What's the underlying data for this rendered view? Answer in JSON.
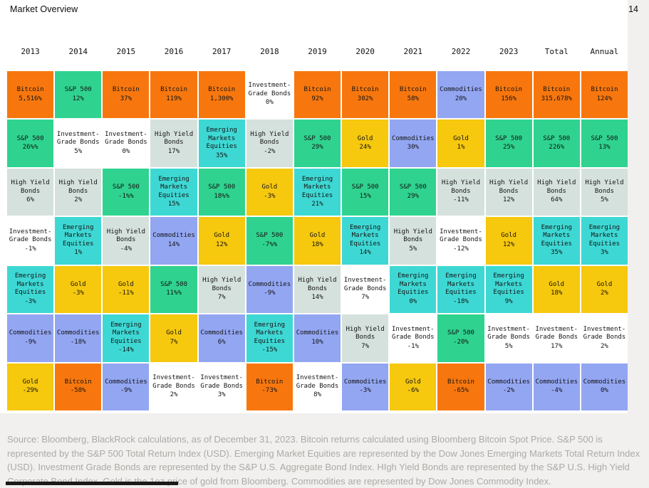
{
  "header": {
    "title": "Market Overview",
    "page_number": "14"
  },
  "asset_colors": {
    "Bitcoin": "#F7770E",
    "S&P 500": "#2FD38F",
    "High Yield Bonds": "#D5E1DD",
    "Investment-Grade Bonds": "#FFFFFF",
    "Emerging Markets Equities": "#3ED8D4",
    "Commodities": "#93A6F2",
    "Gold": "#F6C80E"
  },
  "chart_data": {
    "type": "table",
    "title": "Market Overview",
    "columns": [
      "2013",
      "2014",
      "2015",
      "2016",
      "2017",
      "2018",
      "2019",
      "2020",
      "2021",
      "2022",
      "2023",
      "Total",
      "Annual"
    ],
    "rows": [
      [
        {
          "asset": "Bitcoin",
          "value": "5,516%"
        },
        {
          "asset": "S&P 500",
          "value": "12%"
        },
        {
          "asset": "Bitcoin",
          "value": "37%"
        },
        {
          "asset": "Bitcoin",
          "value": "119%"
        },
        {
          "asset": "Bitcoin",
          "value": "1,300%"
        },
        {
          "asset": "Investment-Grade Bonds",
          "value": "0%"
        },
        {
          "asset": "Bitcoin",
          "value": "92%"
        },
        {
          "asset": "Bitcoin",
          "value": "302%"
        },
        {
          "asset": "Bitcoin",
          "value": "58%"
        },
        {
          "asset": "Commodities",
          "value": "20%"
        },
        {
          "asset": "Bitcoin",
          "value": "156%"
        },
        {
          "asset": "Bitcoin",
          "value": "315,678%"
        },
        {
          "asset": "Bitcoin",
          "value": "124%"
        }
      ],
      [
        {
          "asset": "S&P 500",
          "value": "26%%"
        },
        {
          "asset": "Investment-Grade Bonds",
          "value": "5%"
        },
        {
          "asset": "Investment-Grade Bonds",
          "value": "0%"
        },
        {
          "asset": "High Yield Bonds",
          "value": "17%"
        },
        {
          "asset": "Emerging Markets Equities",
          "value": "35%"
        },
        {
          "asset": "High Yield Bonds",
          "value": "-2%"
        },
        {
          "asset": "S&P 500",
          "value": "29%"
        },
        {
          "asset": "Gold",
          "value": "24%"
        },
        {
          "asset": "Commodities",
          "value": "30%"
        },
        {
          "asset": "Gold",
          "value": "1%"
        },
        {
          "asset": "S&P 500",
          "value": "25%"
        },
        {
          "asset": "S&P 500",
          "value": "226%"
        },
        {
          "asset": "S&P 500",
          "value": "13%"
        }
      ],
      [
        {
          "asset": "High Yield Bonds",
          "value": "6%"
        },
        {
          "asset": "High Yield Bonds",
          "value": "2%"
        },
        {
          "asset": "S&P 500",
          "value": "-1%%"
        },
        {
          "asset": "Emerging Markets Equities",
          "value": "15%"
        },
        {
          "asset": "S&P 500",
          "value": "18%%"
        },
        {
          "asset": "Gold",
          "value": "-3%"
        },
        {
          "asset": "Emerging Markets Equities",
          "value": "21%"
        },
        {
          "asset": "S&P 500",
          "value": "15%"
        },
        {
          "asset": "S&P 500",
          "value": "29%"
        },
        {
          "asset": "High Yield Bonds",
          "value": "-11%"
        },
        {
          "asset": "High Yield Bonds",
          "value": "12%"
        },
        {
          "asset": "High Yield Bonds",
          "value": "64%"
        },
        {
          "asset": "High Yield Bonds",
          "value": "5%"
        }
      ],
      [
        {
          "asset": "Investment-Grade Bonds",
          "value": "-1%"
        },
        {
          "asset": "Emerging Markets Equities",
          "value": "1%"
        },
        {
          "asset": "High Yield Bonds",
          "value": "-4%"
        },
        {
          "asset": "Commodities",
          "value": "14%"
        },
        {
          "asset": "Gold",
          "value": "12%"
        },
        {
          "asset": "S&P 500",
          "value": "-7%%"
        },
        {
          "asset": "Gold",
          "value": "18%"
        },
        {
          "asset": "Emerging Markets Equities",
          "value": "14%"
        },
        {
          "asset": "High Yield Bonds",
          "value": "5%"
        },
        {
          "asset": "Investment-Grade Bonds",
          "value": "-12%"
        },
        {
          "asset": "Gold",
          "value": "12%"
        },
        {
          "asset": "Emerging Markets Equities",
          "value": "35%"
        },
        {
          "asset": "Emerging Markets Equities",
          "value": "3%"
        }
      ],
      [
        {
          "asset": "Emerging Markets Equities",
          "value": "-3%"
        },
        {
          "asset": "Gold",
          "value": "-3%"
        },
        {
          "asset": "Gold",
          "value": "-11%"
        },
        {
          "asset": "S&P 500",
          "value": "11%%"
        },
        {
          "asset": "High Yield Bonds",
          "value": "7%"
        },
        {
          "asset": "Commodities",
          "value": "-9%"
        },
        {
          "asset": "High Yield Bonds",
          "value": "14%"
        },
        {
          "asset": "Investment-Grade Bonds",
          "value": "7%"
        },
        {
          "asset": "Emerging Markets Equities",
          "value": "0%"
        },
        {
          "asset": "Emerging Markets Equities",
          "value": "-18%"
        },
        {
          "asset": "Emerging Markets Equities",
          "value": "9%"
        },
        {
          "asset": "Gold",
          "value": "18%"
        },
        {
          "asset": "Gold",
          "value": "2%"
        }
      ],
      [
        {
          "asset": "Commodities",
          "value": "-9%"
        },
        {
          "asset": "Commodities",
          "value": "-18%"
        },
        {
          "asset": "Emerging Markets Equities",
          "value": "-14%"
        },
        {
          "asset": "Gold",
          "value": "7%"
        },
        {
          "asset": "Commodities",
          "value": "6%"
        },
        {
          "asset": "Emerging Markets Equities",
          "value": "-15%"
        },
        {
          "asset": "Commodities",
          "value": "10%"
        },
        {
          "asset": "High Yield Bonds",
          "value": "7%"
        },
        {
          "asset": "Investment-Grade Bonds",
          "value": "-1%"
        },
        {
          "asset": "S&P 500",
          "value": "-20%"
        },
        {
          "asset": "Investment-Grade Bonds",
          "value": "5%"
        },
        {
          "asset": "Investment-Grade Bonds",
          "value": "17%"
        },
        {
          "asset": "Investment-Grade Bonds",
          "value": "2%"
        }
      ],
      [
        {
          "asset": "Gold",
          "value": "-29%"
        },
        {
          "asset": "Bitcoin",
          "value": "-58%"
        },
        {
          "asset": "Commodities",
          "value": "-9%"
        },
        {
          "asset": "Investment-Grade Bonds",
          "value": "2%"
        },
        {
          "asset": "Investment-Grade Bonds",
          "value": "3%"
        },
        {
          "asset": "Bitcoin",
          "value": "-73%"
        },
        {
          "asset": "Investment-Grade Bonds",
          "value": "8%"
        },
        {
          "asset": "Commodities",
          "value": "-3%"
        },
        {
          "asset": "Gold",
          "value": "-6%"
        },
        {
          "asset": "Bitcoin",
          "value": "-65%"
        },
        {
          "asset": "Commodities",
          "value": "-2%"
        },
        {
          "asset": "Commodities",
          "value": "-4%"
        },
        {
          "asset": "Commodities",
          "value": "0%"
        }
      ]
    ]
  },
  "footer": {
    "source": "Source: Bloomberg, BlackRock calculations, as of December 31, 2023. Bitcoin returns calculated using Bloomberg Bitcoin Spot Price. S&P 500 is represented by the S&P 500 Total Return Index (USD). Emerging Market Equities are represented by the Dow Jones Emerging Markets Total Return Index (USD). Investment Grade Bonds are represented by the S&P U.S. Aggregate Bond Index. HIgh Yield Bonds are represented by the S&P U.S. High Yield Corporate Bond Index. Gold is the 1oz price of gold from Bloomberg. Commodities are represented by Dow Jones Commodity Index."
  }
}
